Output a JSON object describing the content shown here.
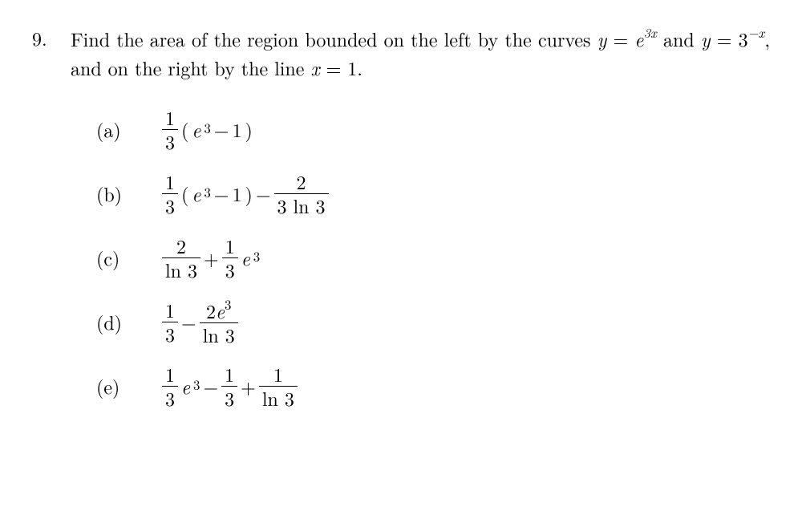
{
  "problem": {
    "number": "9.",
    "text_part1": "Find the area of the region bounded on the left by the curves ",
    "eq1_lhs": "y",
    "eq1_eq": " = ",
    "eq1_base": "e",
    "eq1_exp": "3x",
    "conj1": " and ",
    "eq2_lhs": "y",
    "eq2_eq": " = ",
    "eq2_base": "3",
    "eq2_exp": "−x",
    "text_part2": ", and on the right by the line ",
    "eq3": "x",
    "eq3_eq": " = 1.",
    "fontsize": 24,
    "color": "#000000",
    "background": "#ffffff"
  },
  "choices": {
    "a": {
      "label": "(a)",
      "frac1_num": "1",
      "frac1_den": "3",
      "paren_open": "(",
      "e_base": "e",
      "e_exp": "3",
      "minus": " − ",
      "one": "1",
      "paren_close": ")"
    },
    "b": {
      "label": "(b)",
      "frac1_num": "1",
      "frac1_den": "3",
      "paren_open": "(",
      "e_base": "e",
      "e_exp": "3",
      "minus1": " − ",
      "one": "1",
      "paren_close": ")",
      "minus2": " − ",
      "frac2_num": "2",
      "frac2_den": "3 ln 3"
    },
    "c": {
      "label": "(c)",
      "frac1_num": "2",
      "frac1_den": "ln 3",
      "plus": " + ",
      "frac2_num": "1",
      "frac2_den": "3",
      "e_base": "e",
      "e_exp": "3"
    },
    "d": {
      "label": "(d)",
      "frac1_num": "1",
      "frac1_den": "3",
      "minus": " − ",
      "frac2_num_coef": "2",
      "frac2_num_base": "e",
      "frac2_num_exp": "3",
      "frac2_den": "ln 3"
    },
    "e": {
      "label": "(e)",
      "frac1_num": "1",
      "frac1_den": "3",
      "e_base": "e",
      "e_exp": "3",
      "minus": " − ",
      "frac2_num": "1",
      "frac2_den": "3",
      "plus": " + ",
      "frac3_num": "1",
      "frac3_den": "ln 3"
    }
  }
}
